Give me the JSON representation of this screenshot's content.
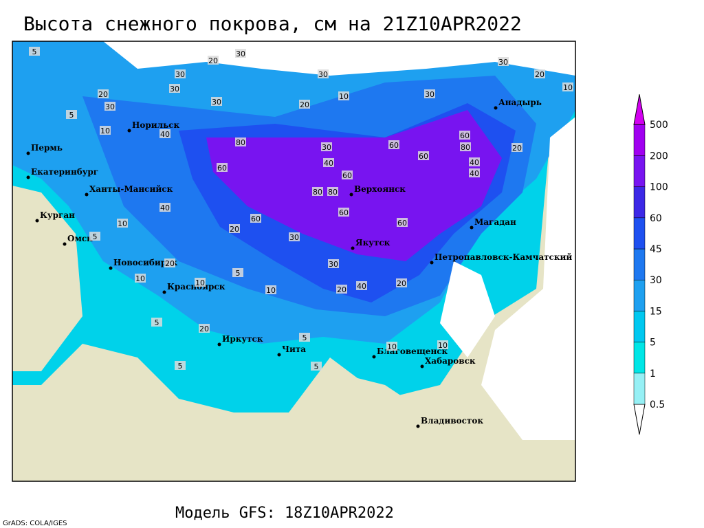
{
  "title": "Высота снежного покрова, см на 21Z10APR2022",
  "model": "Модель GFS: 18Z10APR2022",
  "credit": "GrADS: COLA/IGES",
  "cities": [
    "Норильск",
    "Пермь",
    "Екатеринбург",
    "Ханты-Мансийск",
    "Курган",
    "Омск",
    "Новосибирск",
    "Красноярск",
    "Верхоянск",
    "Якутск",
    "Магадан",
    "Анадырь",
    "Петропавловск-Камчатский",
    "Иркутск",
    "Чита",
    "Благовещенск",
    "Хабаровск",
    "Владивосток"
  ],
  "legend": {
    "levels": [
      0.5,
      1,
      5,
      15,
      30,
      45,
      60,
      100,
      200,
      500
    ],
    "colors": [
      "#ffffff",
      "#96f0f5",
      "#00e6e6",
      "#00c8f0",
      "#1ea0f0",
      "#1e78f0",
      "#1e50f0",
      "#3c28e6",
      "#7814f0",
      "#a000f0",
      "#d200f0"
    ]
  },
  "contour_labels": [
    5,
    30,
    20,
    30,
    30,
    30,
    20,
    30,
    20,
    30,
    10,
    30,
    20,
    10,
    5,
    10,
    40,
    80,
    60,
    30,
    80,
    60,
    80,
    60,
    60,
    40,
    60,
    80,
    40,
    20,
    60,
    40,
    60,
    60,
    30,
    40,
    20,
    10,
    5,
    10,
    5,
    20,
    10,
    5,
    5,
    20,
    40,
    20,
    20,
    10,
    5,
    10,
    5,
    10,
    30,
    30
  ]
}
